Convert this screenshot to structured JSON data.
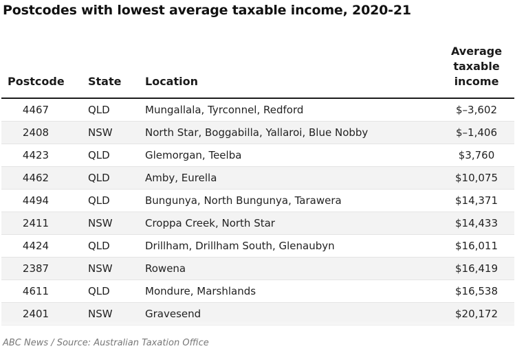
{
  "title": "Postcodes with lowest average taxable income, 2020-21",
  "source": "ABC News / Source: Australian Taxation Office",
  "chart_data": {
    "type": "table",
    "columns": [
      "Postcode",
      "State",
      "Location",
      "Average\ntaxable\nincome"
    ],
    "rows": [
      {
        "postcode": "4467",
        "state": "QLD",
        "location": "Mungallala, Tyrconnel, Redford",
        "income": "$–3,602"
      },
      {
        "postcode": "2408",
        "state": "NSW",
        "location": "North Star, Boggabilla, Yallaroi, Blue Nobby",
        "income": "$–1,406"
      },
      {
        "postcode": "4423",
        "state": "QLD",
        "location": "Glemorgan, Teelba",
        "income": "$3,760"
      },
      {
        "postcode": "4462",
        "state": "QLD",
        "location": "Amby, Eurella",
        "income": "$10,075"
      },
      {
        "postcode": "4494",
        "state": "QLD",
        "location": "Bungunya, North Bungunya, Tarawera",
        "income": "$14,371"
      },
      {
        "postcode": "2411",
        "state": "NSW",
        "location": "Croppa Creek, North Star",
        "income": "$14,433"
      },
      {
        "postcode": "4424",
        "state": "QLD",
        "location": "Drillham, Drillham South, Glenaubyn",
        "income": "$16,011"
      },
      {
        "postcode": "2387",
        "state": "NSW",
        "location": "Rowena",
        "income": "$16,419"
      },
      {
        "postcode": "4611",
        "state": "QLD",
        "location": "Mondure, Marshlands",
        "income": "$16,538"
      },
      {
        "postcode": "2401",
        "state": "NSW",
        "location": "Gravesend",
        "income": "$20,172"
      }
    ]
  }
}
